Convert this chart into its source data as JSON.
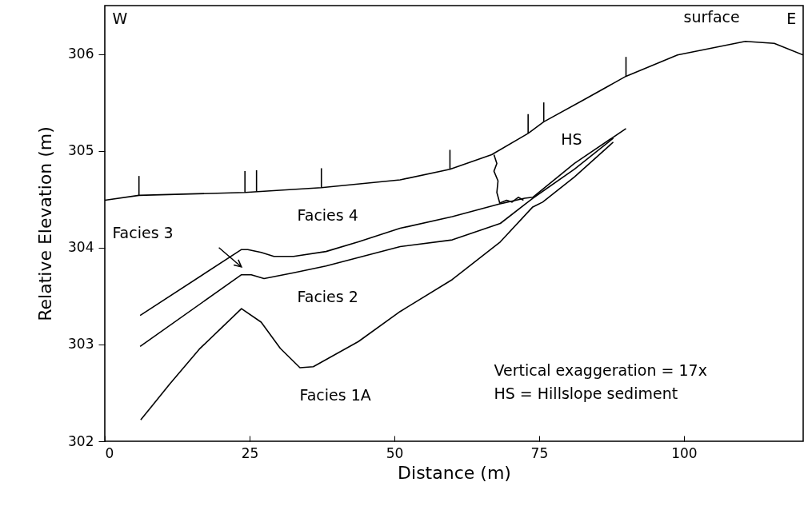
{
  "chart_data": {
    "type": "line",
    "xlabel": "Distance (m)",
    "ylabel": "Relative Elevation (m)",
    "xlim": [
      0,
      120.6
    ],
    "ylim": [
      302,
      306.5
    ],
    "xticks": [
      0,
      25,
      50,
      75,
      100
    ],
    "yticks": [
      302,
      303,
      304,
      305,
      306
    ],
    "grid": false,
    "marker": "none",
    "line_style": "solid",
    "series": [
      {
        "name": "surface",
        "color": "#000000",
        "x": [
          0,
          5.9,
          24.2,
          37.4,
          51,
          59.6,
          66.8,
          73.1,
          75.8,
          82.8,
          90,
          98.9,
          110.6,
          115.6,
          120.6
        ],
        "values": [
          304.49,
          304.54,
          304.57,
          304.62,
          304.7,
          304.81,
          304.96,
          305.18,
          305.3,
          305.53,
          305.77,
          305.99,
          306.13,
          306.11,
          305.99
        ]
      },
      {
        "color": "#000000",
        "x": [
          6.1,
          23.6,
          24.7,
          27,
          29.2,
          32.6,
          38.2,
          43.8,
          51,
          60,
          68.1,
          72.5,
          73.9,
          81.1,
          90
        ],
        "values": [
          303.3,
          303.98,
          303.98,
          303.95,
          303.91,
          303.91,
          303.96,
          304.06,
          304.2,
          304.32,
          304.45,
          304.51,
          304.52,
          304.87,
          305.23
        ]
      },
      {
        "color": "#000000",
        "x": [
          6.1,
          23.6,
          25.3,
          27.5,
          32.6,
          38.2,
          51,
          60,
          68.3,
          73.9,
          81.1,
          87.8
        ],
        "values": [
          302.98,
          303.72,
          303.72,
          303.68,
          303.74,
          303.81,
          304.01,
          304.08,
          304.25,
          304.51,
          304.81,
          305.13
        ]
      },
      {
        "color": "#000000",
        "x": [
          6.2,
          11.2,
          16.3,
          23.6,
          27,
          30.3,
          33.7,
          36,
          43.8,
          51,
          60,
          68.3,
          73.9,
          75.6,
          81.1,
          87.8
        ],
        "values": [
          302.22,
          302.59,
          302.95,
          303.37,
          303.23,
          302.96,
          302.76,
          302.77,
          303.03,
          303.34,
          303.67,
          304.06,
          304.42,
          304.47,
          304.73,
          305.09
        ]
      },
      {
        "color": "#000000",
        "x": [
          67.2,
          67.7,
          67.2,
          67.9,
          67.7,
          68.2,
          69.4,
          70.3,
          71.4,
          72.3
        ],
        "values": [
          304.96,
          304.87,
          304.79,
          304.69,
          304.57,
          304.46,
          304.49,
          304.47,
          304.52,
          304.49
        ]
      },
      {
        "type": "bar",
        "color": "#000000",
        "x": [
          5.9,
          24.2,
          26.2,
          37.4,
          59.6,
          73.1,
          75.8,
          90
        ],
        "base": [
          304.54,
          304.57,
          304.58,
          304.62,
          304.81,
          305.18,
          305.3,
          305.77
        ],
        "values": [
          0.2,
          0.22,
          0.22,
          0.2,
          0.2,
          0.2,
          0.2,
          0.2
        ]
      }
    ],
    "annotations": [
      "W",
      "E",
      "Facies 4",
      "Facies 2",
      "Facies 1A",
      "HS",
      "Vertical exaggeration = 17x",
      "HS = Hillslope sediment",
      "Facies 3"
    ]
  }
}
